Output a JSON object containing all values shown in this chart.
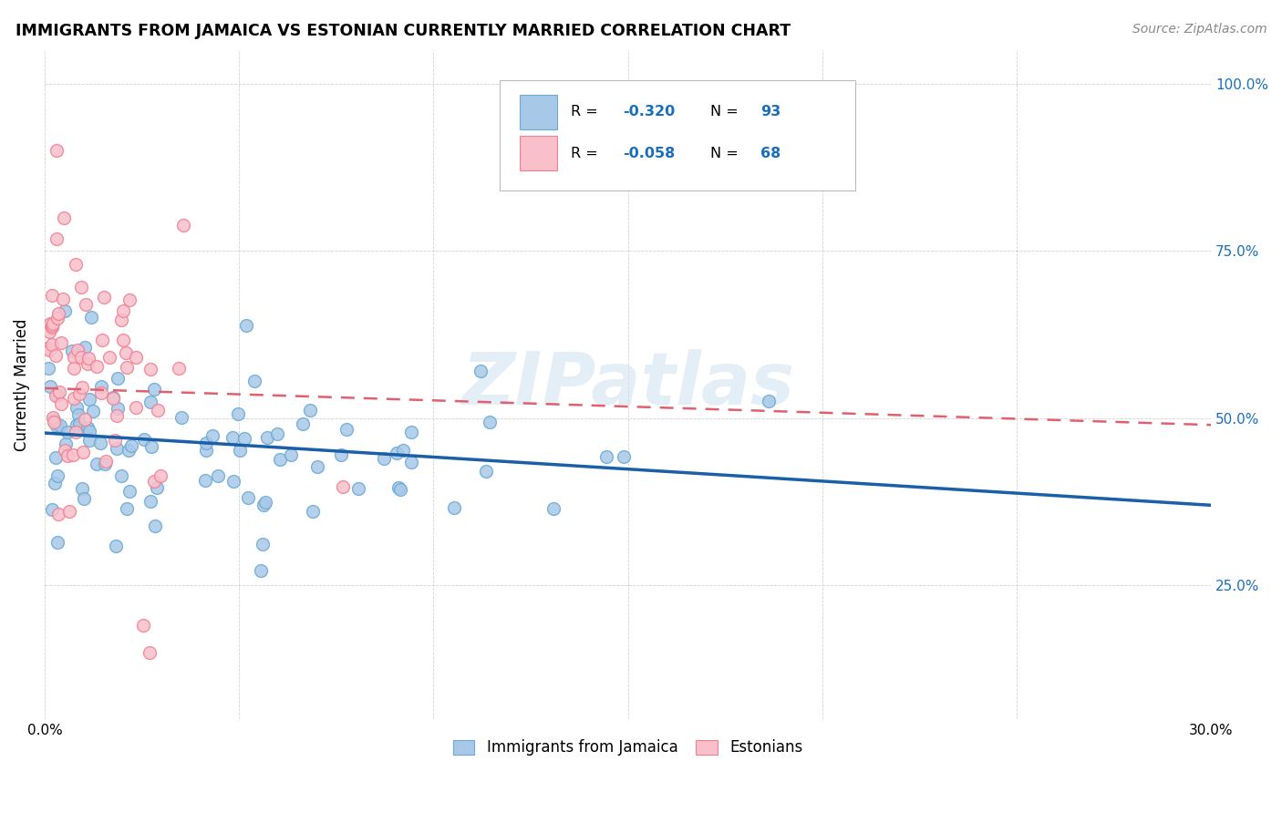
{
  "title": "IMMIGRANTS FROM JAMAICA VS ESTONIAN CURRENTLY MARRIED CORRELATION CHART",
  "source": "Source: ZipAtlas.com",
  "ylabel": "Currently Married",
  "xlim": [
    0.0,
    0.3
  ],
  "ylim": [
    0.05,
    1.05
  ],
  "xticks": [
    0.0,
    0.05,
    0.1,
    0.15,
    0.2,
    0.25,
    0.3
  ],
  "xticklabels": [
    "0.0%",
    "",
    "",
    "",
    "",
    "",
    "30.0%"
  ],
  "yticks": [
    0.25,
    0.5,
    0.75,
    1.0
  ],
  "yticklabels": [
    "25.0%",
    "50.0%",
    "75.0%",
    "100.0%"
  ],
  "legend_blue_r": "-0.320",
  "legend_blue_n": "93",
  "legend_pink_r": "-0.058",
  "legend_pink_n": "68",
  "watermark": "ZIPatlas",
  "color_blue_fill": "#a8c8e8",
  "color_blue_edge": "#6aaad4",
  "color_pink_fill": "#f9c0cc",
  "color_pink_edge": "#f08090",
  "color_blue_line": "#1a5fa8",
  "color_pink_line": "#e06070",
  "color_r_value": "#1a6fbd",
  "color_axis_label": "#1a6fbd",
  "blue_seed": 42,
  "pink_seed": 77,
  "n_blue": 93,
  "n_pink": 68,
  "blue_trend_x0": 0.0,
  "blue_trend_y0": 0.478,
  "blue_trend_x1": 0.3,
  "blue_trend_y1": 0.37,
  "pink_trend_x0": 0.0,
  "pink_trend_y0": 0.545,
  "pink_trend_x1": 0.3,
  "pink_trend_y1": 0.49
}
